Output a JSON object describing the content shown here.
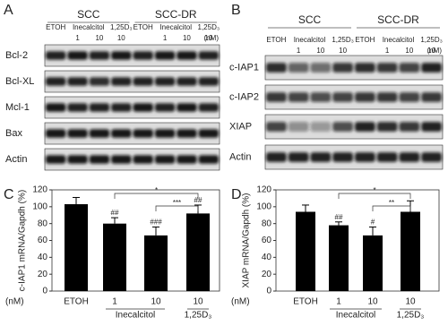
{
  "panels": [
    {
      "label": "A",
      "groups": [
        "SCC",
        "SCC-DR"
      ],
      "treatments": [
        "ETOH",
        "Inecalcitol",
        "1,25D₃",
        "ETOH",
        "Inecalcitol",
        "1,25D₃"
      ],
      "doses": [
        "1",
        "10",
        "10",
        "1",
        "10",
        "10"
      ],
      "unit": "(nM)",
      "rows": [
        "Bcl-2",
        "Bcl-XL",
        "Mcl-1",
        "Bax",
        "Actin"
      ]
    },
    {
      "label": "B",
      "groups": [
        "SCC",
        "SCC-DR"
      ],
      "treatments": [
        "ETOH",
        "Inecalcitol",
        "1,25D₃",
        "ETOH",
        "Inecalcitol",
        "1,25D₃"
      ],
      "doses": [
        "1",
        "10",
        "10",
        "1",
        "10",
        "10"
      ],
      "unit": "(nM)",
      "rows": [
        "c-IAP1",
        "c-IAP2",
        "XIAP",
        "Actin"
      ]
    }
  ],
  "chart_data": [
    {
      "type": "bar",
      "panel": "C",
      "y_label": "c-IAP1 mRNA/Gapdh (%)",
      "categories": [
        "ETOH",
        "1",
        "10",
        "10"
      ],
      "groups": [
        "Inecalcitol",
        "1,25D₃"
      ],
      "unit": "(nM)",
      "values": [
        103,
        80,
        66,
        92
      ],
      "errors": [
        8,
        7,
        10,
        10
      ],
      "bar_annotations": [
        null,
        "##",
        "###",
        "##"
      ],
      "comparisons": [
        "*",
        "***"
      ],
      "color": "#000000",
      "ylim": [
        0,
        120
      ],
      "yticks": [
        0,
        20,
        40,
        60,
        80,
        100,
        120
      ]
    },
    {
      "type": "bar",
      "panel": "D",
      "y_label": "XIAP mRNA/Gapdh (%)",
      "categories": [
        "ETOH",
        "1",
        "10",
        "10"
      ],
      "groups": [
        "Inecalcitol",
        "1,25D₃"
      ],
      "unit": "(nM)",
      "values": [
        94,
        78,
        66,
        94
      ],
      "errors": [
        8,
        4,
        10,
        13
      ],
      "bar_annotations": [
        null,
        "##",
        "#",
        null
      ],
      "comparisons": [
        "*",
        "**"
      ],
      "color": "#000000",
      "ylim": [
        0,
        120
      ],
      "yticks": [
        0,
        20,
        40,
        60,
        80,
        100,
        120
      ]
    }
  ]
}
